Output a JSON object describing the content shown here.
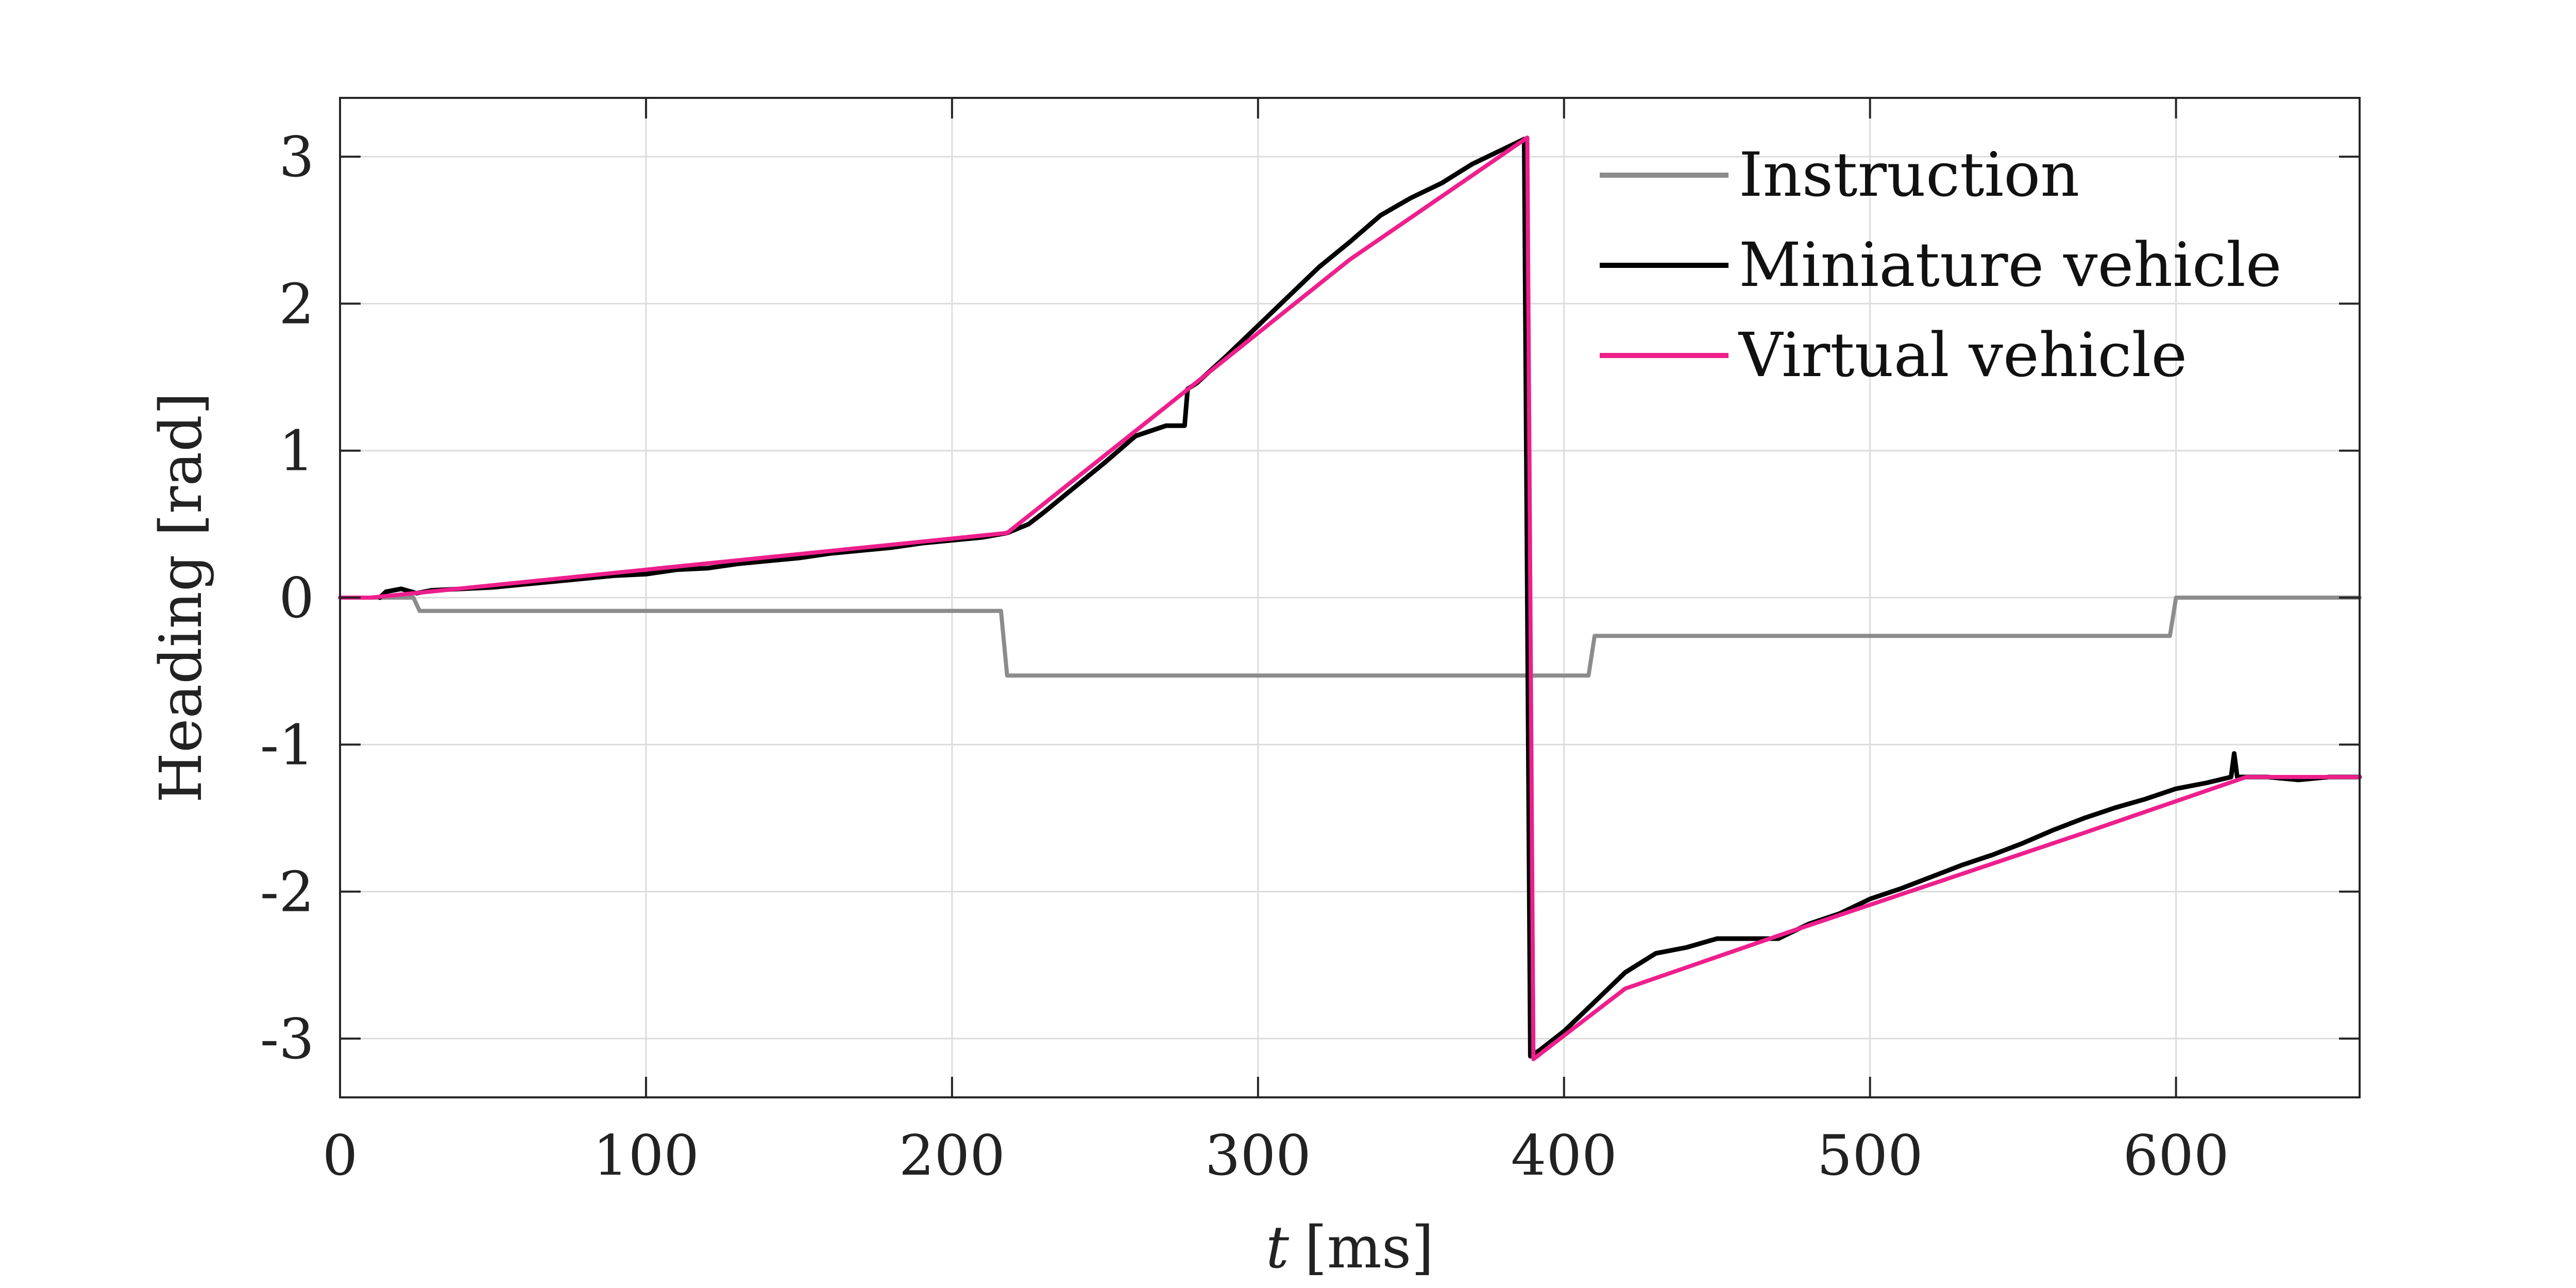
{
  "chart_data": {
    "type": "line",
    "xlabel_var": "t",
    "xlabel_unit": "[ms]",
    "ylabel": "Heading [rad]",
    "xlim": [
      0,
      660
    ],
    "ylim": [
      -3.4,
      3.4
    ],
    "xticks": [
      0,
      100,
      200,
      300,
      400,
      500,
      600
    ],
    "yticks": [
      3,
      2,
      1,
      0,
      -1,
      -2,
      -3
    ],
    "xtick_labels": [
      "0",
      "100",
      "200",
      "300",
      "400",
      "500",
      "600"
    ],
    "ytick_labels": [
      "3",
      "2",
      "1",
      "0",
      "-1",
      "-2",
      "-3"
    ],
    "grid": true,
    "legend_position": "top-right",
    "series": [
      {
        "name": "Instruction",
        "color": "#8c8c8c",
        "x": [
          0,
          24,
          26,
          216,
          218,
          388,
          408,
          410,
          598,
          600,
          660
        ],
        "y": [
          0,
          0,
          -0.09,
          -0.09,
          -0.53,
          -0.53,
          -0.53,
          -0.26,
          -0.26,
          0,
          0
        ]
      },
      {
        "name": "Miniature vehicle",
        "color": "#000000",
        "x": [
          13,
          15,
          20,
          25,
          30,
          40,
          50,
          60,
          70,
          80,
          90,
          100,
          110,
          120,
          130,
          140,
          150,
          160,
          170,
          180,
          190,
          200,
          210,
          218,
          225,
          230,
          240,
          250,
          260,
          270,
          276,
          277,
          280,
          290,
          300,
          310,
          320,
          330,
          340,
          350,
          360,
          370,
          380,
          387,
          388,
          389,
          392,
          400,
          410,
          420,
          430,
          440,
          450,
          455,
          470,
          475,
          480,
          490,
          500,
          510,
          520,
          530,
          540,
          550,
          560,
          570,
          580,
          590,
          600,
          610,
          618,
          619,
          620,
          630,
          640,
          650,
          660
        ],
        "y": [
          0,
          0.04,
          0.06,
          0.03,
          0.05,
          0.06,
          0.07,
          0.09,
          0.11,
          0.13,
          0.15,
          0.16,
          0.19,
          0.2,
          0.23,
          0.25,
          0.27,
          0.3,
          0.32,
          0.34,
          0.37,
          0.39,
          0.41,
          0.44,
          0.5,
          0.58,
          0.75,
          0.92,
          1.1,
          1.17,
          1.17,
          1.42,
          1.46,
          1.65,
          1.85,
          2.05,
          2.25,
          2.42,
          2.6,
          2.72,
          2.82,
          2.95,
          3.05,
          3.12,
          0,
          -3.12,
          -3.08,
          -2.95,
          -2.75,
          -2.55,
          -2.42,
          -2.38,
          -2.32,
          -2.32,
          -2.32,
          -2.27,
          -2.22,
          -2.15,
          -2.05,
          -1.98,
          -1.9,
          -1.82,
          -1.75,
          -1.67,
          -1.58,
          -1.5,
          -1.43,
          -1.37,
          -1.3,
          -1.26,
          -1.22,
          -1.06,
          -1.22,
          -1.22,
          -1.24,
          -1.22,
          -1.22
        ]
      },
      {
        "name": "Virtual vehicle",
        "color": "#ee1f8c",
        "x": [
          0,
          10,
          218,
          270,
          330,
          388,
          389,
          390,
          420,
          470,
          520,
          570,
          623,
          660
        ],
        "y": [
          0,
          0,
          0.44,
          1.3,
          2.3,
          3.13,
          0,
          -3.14,
          -2.66,
          -2.3,
          -1.95,
          -1.6,
          -1.22,
          -1.22
        ]
      }
    ]
  }
}
